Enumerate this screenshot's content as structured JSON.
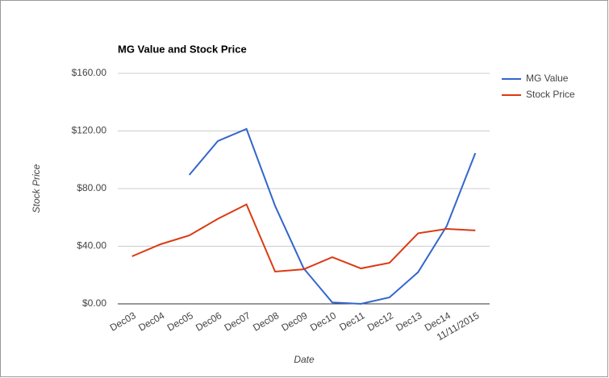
{
  "chart_data": {
    "type": "line",
    "title": "MG Value and Stock Price",
    "y_label": "Stock Price",
    "x_label": "Date",
    "categories": [
      "Dec03",
      "Dec04",
      "Dec05",
      "Dec06",
      "Dec07",
      "Dec08",
      "Dec09",
      "Dec10",
      "Dec11",
      "Dec12",
      "Dec13",
      "Dec14",
      "11/11/2015"
    ],
    "series": [
      {
        "name": "MG Value",
        "color": "#3366cc",
        "values": [
          null,
          null,
          89.5,
          113,
          121.4,
          68,
          24.6,
          1,
          0,
          4.5,
          22,
          54,
          104.6
        ]
      },
      {
        "name": "Stock Price",
        "color": "#dc3912",
        "values": [
          33,
          41.4,
          47.5,
          59,
          69,
          22.4,
          24,
          32.4,
          24.6,
          28.5,
          49,
          52,
          51
        ]
      }
    ],
    "ylim": [
      0,
      160
    ],
    "yticks": [
      {
        "value": 0,
        "label": "$0.00"
      },
      {
        "value": 40,
        "label": "$40.00"
      },
      {
        "value": 80,
        "label": "$80.00"
      },
      {
        "value": 120,
        "label": "$120.00"
      },
      {
        "value": 160,
        "label": "$160.00"
      }
    ],
    "grid": true,
    "legend": "right"
  }
}
